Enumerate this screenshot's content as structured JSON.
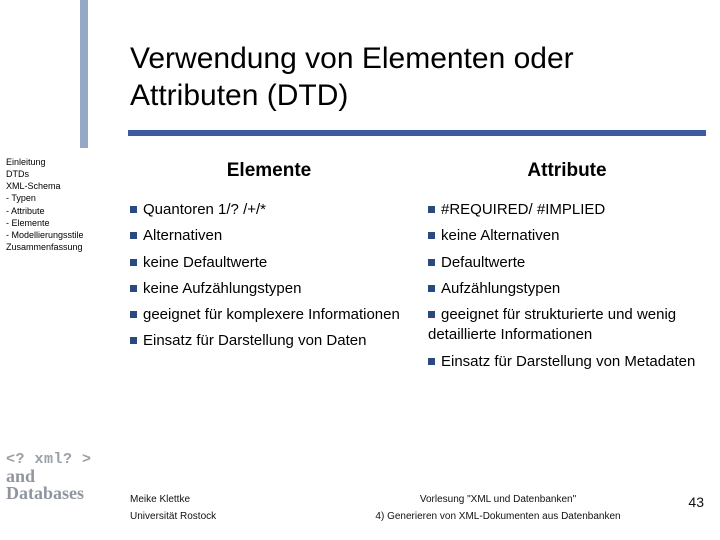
{
  "title": "Verwendung von Elementen oder Attributen (DTD)",
  "sidebar": {
    "items": [
      "Einleitung",
      "DTDs",
      "XML-Schema",
      "- Typen",
      "- Attribute",
      "- Elemente",
      "- Modellierungsstile",
      "Zusammenfassung"
    ]
  },
  "columns": {
    "left": {
      "heading": "Elemente",
      "bullets": [
        "Quantoren 1/? /+/*",
        "Alternativen",
        "keine Defaultwerte",
        "keine Aufzählungstypen",
        "geeignet für komplexere Informationen",
        "Einsatz für Darstellung von Daten"
      ]
    },
    "right": {
      "heading": "Attribute",
      "bullets": [
        "#REQUIRED/ #IMPLIED",
        "keine Alternativen",
        "Defaultwerte",
        "Aufzählungstypen",
        "geeignet für strukturierte und wenig detaillierte Informationen",
        "Einsatz für Darstellung von Metadaten"
      ]
    }
  },
  "logo": {
    "l1": "<? xml? >",
    "l2": "and",
    "l3": "Databases"
  },
  "footer": {
    "author": "Meike Klettke",
    "uni": "Universität Rostock",
    "lecture": "Vorlesung \"XML und Datenbanken\"",
    "subtitle": "4) Generieren von XML-Dokumenten aus Datenbanken"
  },
  "page": "43",
  "colors": {
    "accent": "#3b5aa0",
    "accent_light": "#97a7c6",
    "bullet": "#2a497f"
  }
}
